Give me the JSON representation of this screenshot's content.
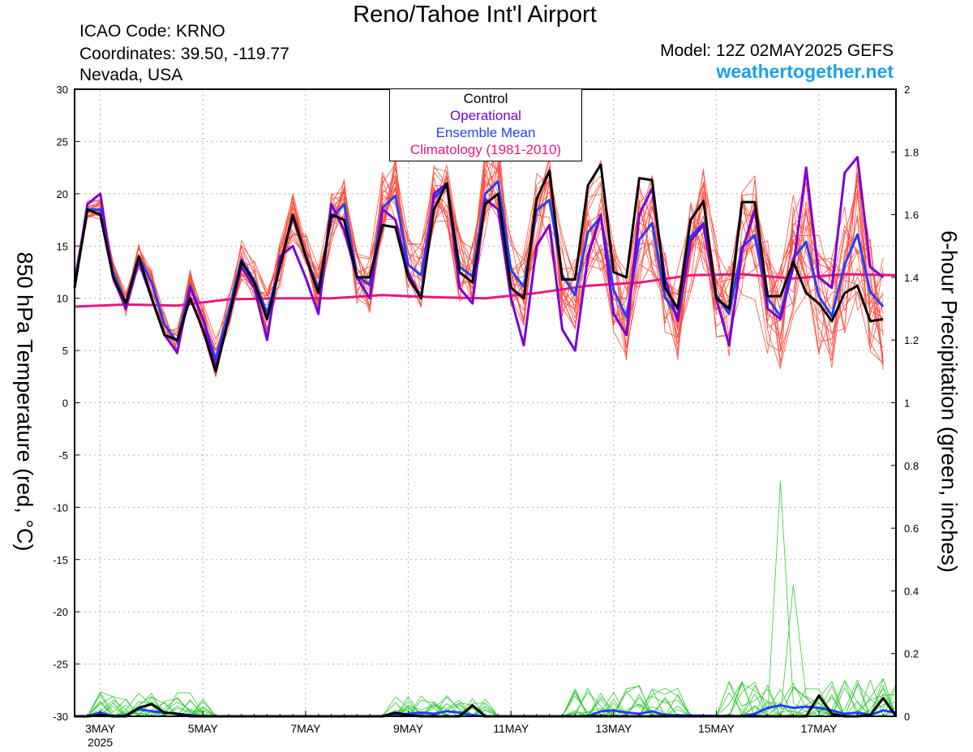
{
  "header": {
    "title": "Reno/Tahoe Int'l Airport",
    "icao": "ICAO Code: KRNO",
    "coordinates": "Coordinates: 39.50, -119.77",
    "region": "Nevada, USA",
    "model": "Model: 12Z 02MAY2025 GEFS",
    "site": "weathertogether.net"
  },
  "colors": {
    "control": "#000000",
    "operational": "#7a00d6",
    "ensemble_mean": "#2040ff",
    "climatology": "#e8177f",
    "members": "#ff4c3c",
    "precip_members": "#33cc33",
    "site": "#1aa0ee"
  },
  "chart_data": {
    "type": "line",
    "xlabel": "",
    "ylabel_left": "850 hPa Temperature (red, °C)",
    "ylabel_right": "6-hour Precipitation (green, inches)",
    "xlim": [
      2.5,
      18.5
    ],
    "ylim_left": [
      -30,
      30
    ],
    "ylim_right": [
      0,
      2
    ],
    "yticks_left": [
      -30,
      -25,
      -20,
      -15,
      -10,
      -5,
      0,
      5,
      10,
      15,
      20,
      25,
      30
    ],
    "yticks_right": [
      0,
      0.2,
      0.4,
      0.6,
      0.8,
      1,
      1.2,
      1.4,
      1.6,
      1.8,
      2
    ],
    "grid": true,
    "xticks": [
      {
        "x": 3,
        "label": "3MAY",
        "sub": "2025"
      },
      {
        "x": 5,
        "label": "5MAY"
      },
      {
        "x": 7,
        "label": "7MAY"
      },
      {
        "x": 9,
        "label": "9MAY"
      },
      {
        "x": 11,
        "label": "11MAY"
      },
      {
        "x": 13,
        "label": "13MAY"
      },
      {
        "x": 15,
        "label": "15MAY"
      },
      {
        "x": 17,
        "label": "17MAY"
      }
    ],
    "legend": [
      "Control",
      "Operational",
      "Ensemble Mean",
      "Climatology (1981-2010)"
    ],
    "x_start_day": 2.5,
    "time_step_days": 0.25,
    "temperature": {
      "control": [
        11,
        18.5,
        18,
        12,
        9.5,
        14,
        10,
        6.5,
        6,
        10,
        7,
        3,
        8,
        13.5,
        11.5,
        8,
        13,
        18,
        14,
        10.5,
        18,
        17.5,
        12,
        12,
        17,
        16.8,
        12,
        10,
        18.5,
        21,
        12.5,
        11.5,
        19,
        20,
        11,
        10,
        19.5,
        22.2,
        11.8,
        11.8,
        20.8,
        22.8,
        12.5,
        12,
        21.5,
        21.3,
        11,
        9,
        17.5,
        19.3,
        10,
        9,
        19.2,
        19.2,
        10.2,
        10.2,
        13.5,
        10.5,
        9.5,
        7.8,
        10.5,
        11.2,
        7.8,
        8
      ],
      "operational": [
        11,
        19,
        20,
        12,
        9,
        13.5,
        10,
        6.5,
        4.8,
        11,
        8,
        3.5,
        8,
        13,
        11,
        6,
        14,
        15,
        12,
        8.5,
        19,
        16.5,
        12,
        10,
        18.5,
        17.5,
        12.5,
        10,
        20,
        21,
        11,
        9.5,
        19.5,
        18.5,
        10,
        5.5,
        15,
        17,
        7,
        5,
        14,
        18,
        8.5,
        6.5,
        18,
        20.5,
        12,
        7.8,
        15.5,
        17,
        10,
        5.5,
        14.5,
        18.5,
        9,
        8,
        13,
        22.5,
        12,
        11,
        22,
        23.5,
        13,
        12
      ],
      "ensemble_mean": [
        11.5,
        18.5,
        18.5,
        12.5,
        9.5,
        14,
        11.5,
        7.5,
        5.8,
        11.2,
        8,
        4.2,
        8.7,
        13.7,
        11.7,
        8.6,
        13.2,
        17.8,
        14.1,
        10.9,
        17.6,
        19,
        12.1,
        11.3,
        18.7,
        19.8,
        13.2,
        12.2,
        19.6,
        20.8,
        13,
        12.1,
        20,
        21.2,
        12.7,
        11.1,
        18.4,
        19.4,
        12.2,
        10.3,
        16.3,
        17.8,
        10.8,
        8.2,
        15.6,
        17.2,
        10.1,
        8.3,
        15.9,
        17.2,
        10.3,
        8.5,
        14.9,
        16,
        10,
        8.3,
        13.8,
        15.4,
        10.2,
        8.3,
        13.2,
        16.1,
        10.6,
        9.2
      ]
    },
    "climatology": {
      "x": [
        2.5,
        3.5,
        4.5,
        5.5,
        6.5,
        7.5,
        8.5,
        9.5,
        10.5,
        11.5,
        12.5,
        13.5,
        14.5,
        15.5,
        16.5,
        17.5,
        18.5
      ],
      "y": [
        9.2,
        9.4,
        9.3,
        9.9,
        10,
        10,
        10.3,
        10.1,
        10,
        10.5,
        11.2,
        11.5,
        12.2,
        12.3,
        11.9,
        12.3,
        12.2
      ]
    },
    "precip_scale_days": [
      3,
      5,
      7,
      9,
      11,
      13,
      15,
      17
    ],
    "precipitation": {
      "control": [
        [
          2.5,
          0
        ],
        [
          2.75,
          0
        ],
        [
          3,
          0.004
        ],
        [
          3.25,
          0
        ],
        [
          3.5,
          0
        ],
        [
          3.75,
          0.027
        ],
        [
          4,
          0.039
        ],
        [
          4.25,
          0.012
        ],
        [
          4.5,
          0.008
        ],
        [
          4.75,
          0
        ],
        [
          5,
          0
        ],
        [
          8.5,
          0
        ],
        [
          8.75,
          0.012
        ],
        [
          9,
          0.004
        ],
        [
          9.25,
          0
        ],
        [
          10,
          0
        ],
        [
          10.25,
          0.035
        ],
        [
          10.5,
          0
        ],
        [
          16.75,
          0
        ],
        [
          17,
          0.066
        ],
        [
          17.25,
          0.008
        ],
        [
          17.5,
          0
        ],
        [
          17.75,
          0
        ],
        [
          18,
          0.004
        ],
        [
          18.25,
          0.058
        ],
        [
          18.5,
          0
        ]
      ],
      "ensemble_mean": [
        [
          2.5,
          0
        ],
        [
          2.75,
          0
        ],
        [
          3,
          0.012
        ],
        [
          3.25,
          0
        ],
        [
          3.5,
          0.004
        ],
        [
          3.75,
          0.023
        ],
        [
          4,
          0.016
        ],
        [
          4.25,
          0.012
        ],
        [
          4.5,
          0.008
        ],
        [
          4.75,
          0.004
        ],
        [
          5,
          0
        ],
        [
          8.5,
          0
        ],
        [
          8.75,
          0.004
        ],
        [
          9,
          0.008
        ],
        [
          9.25,
          0.012
        ],
        [
          9.5,
          0.008
        ],
        [
          9.75,
          0.016
        ],
        [
          10,
          0.012
        ],
        [
          10.25,
          0.004
        ],
        [
          10.5,
          0
        ],
        [
          12.5,
          0
        ],
        [
          12.75,
          0.016
        ],
        [
          13,
          0.019
        ],
        [
          13.25,
          0.012
        ],
        [
          13.5,
          0.008
        ],
        [
          13.75,
          0.016
        ],
        [
          14,
          0.004
        ],
        [
          15.5,
          0
        ],
        [
          15.75,
          0.008
        ],
        [
          16,
          0.027
        ],
        [
          16.25,
          0.035
        ],
        [
          16.5,
          0.027
        ],
        [
          16.75,
          0.031
        ],
        [
          17,
          0.027
        ],
        [
          17.25,
          0.019
        ],
        [
          17.5,
          0.008
        ],
        [
          17.75,
          0.012
        ],
        [
          18,
          0.004
        ],
        [
          18.25,
          0.019
        ],
        [
          18.5,
          0.012
        ]
      ]
    }
  }
}
